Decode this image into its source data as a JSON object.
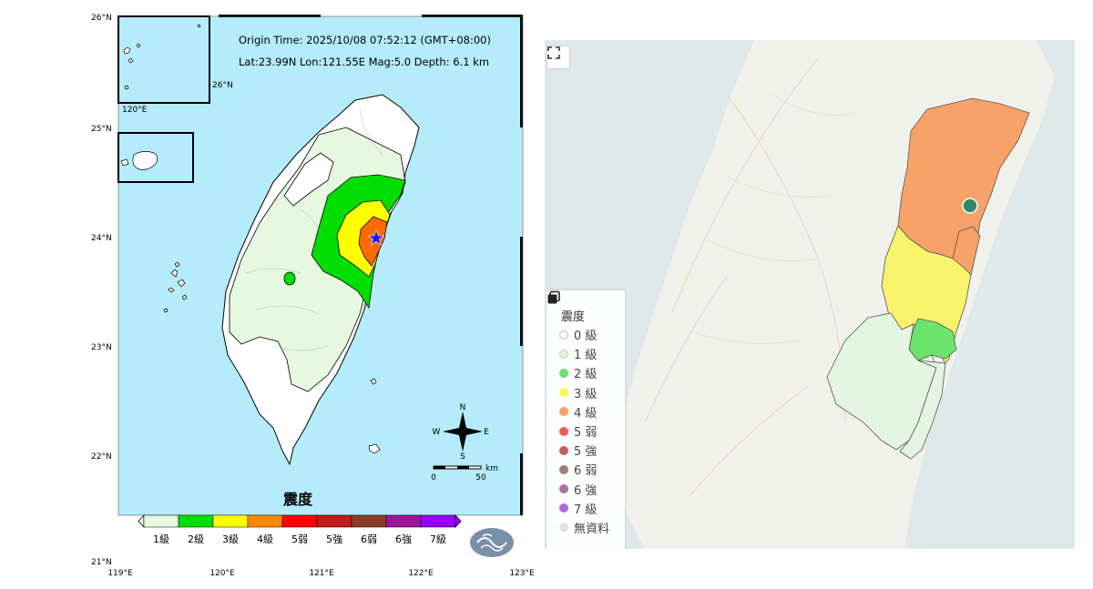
{
  "left_map": {
    "origin_time": "Origin Time: 2025/10/08  07:52:12  (GMT+08:00)",
    "location_line": "Lat:23.99N  Lon:121.55E  Mag:5.0  Depth:  6.1  km",
    "lat_labels": [
      "26°N",
      "25°N",
      "24°N",
      "23°N",
      "22°N",
      "21°N"
    ],
    "lon_labels": [
      "119°E",
      "120°E",
      "121°E",
      "122°E",
      "123°E"
    ],
    "inset_labels": {
      "lat": "26°N",
      "lon": "120°E"
    },
    "compass": {
      "n": "N",
      "s": "S",
      "e": "E",
      "w": "W"
    },
    "scale": {
      "zero": "0",
      "fifty": "50",
      "unit": "km"
    },
    "legend_title": "震度",
    "scale_levels": [
      {
        "label": "1級",
        "color": "#e6f8e0"
      },
      {
        "label": "2級",
        "color": "#00dd00"
      },
      {
        "label": "3級",
        "color": "#ffff00"
      },
      {
        "label": "4級",
        "color": "#ff8800"
      },
      {
        "label": "5弱",
        "color": "#ff0000"
      },
      {
        "label": "5強",
        "color": "#c31a1a"
      },
      {
        "label": "6弱",
        "color": "#8c3c28"
      },
      {
        "label": "6強",
        "color": "#a0149a"
      },
      {
        "label": "7級",
        "color": "#9900ff"
      }
    ],
    "colors": {
      "sea": "#b4ecfb",
      "land_none": "#ffffff",
      "level1": "#e6f8e0",
      "level2": "#00dd00",
      "level3": "#ffff00",
      "level4": "#ff6a00"
    },
    "epicenter_icon": "star-icon",
    "logo": "cwa-logo-icon"
  },
  "right_map": {
    "legend_title": "震度",
    "items": [
      {
        "label": "0 級",
        "color": "#ffffff",
        "border": "#bbbbbb"
      },
      {
        "label": "1 級",
        "color": "#e3f5e1",
        "border": "#b9d8b6"
      },
      {
        "label": "2 級",
        "color": "#6ce46c",
        "border": "#6ce46c"
      },
      {
        "label": "3 級",
        "color": "#fbf85e",
        "border": "#fbf85e"
      },
      {
        "label": "4 級",
        "color": "#f6a269",
        "border": "#f6a269"
      },
      {
        "label": "5 弱",
        "color": "#f35b5b",
        "border": "#f35b5b"
      },
      {
        "label": "5 強",
        "color": "#c4615f",
        "border": "#c4615f"
      },
      {
        "label": "6 弱",
        "color": "#9e7f78",
        "border": "#9e7f78"
      },
      {
        "label": "6 強",
        "color": "#a874a8",
        "border": "#a874a8"
      },
      {
        "label": "7 級",
        "color": "#b366dd",
        "border": "#b366dd"
      },
      {
        "label": "無資料",
        "color": "#e2e2e2",
        "border": "#e2e2e2"
      }
    ],
    "colors": {
      "sea": "#dfe8e9",
      "land": "#f1f1ec",
      "orange": "#f6a269",
      "yellow": "#f8f36a",
      "green": "#6ce46c",
      "lightgreen": "#e3f5e1",
      "epicenter": "#2f8a68"
    }
  }
}
